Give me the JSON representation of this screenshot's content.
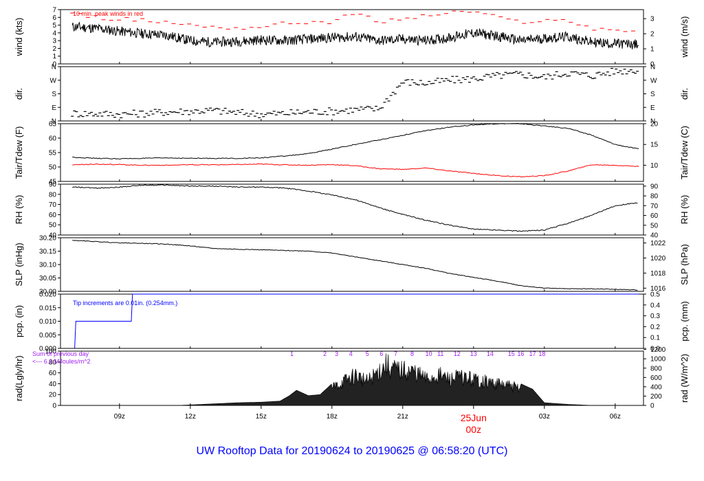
{
  "title": "UW Rooftop Data for 20190624  to  20190625 @ 06:58:20  (UTC)",
  "xaxis": {
    "ticks": [
      "09z",
      "12z",
      "15z",
      "18z",
      "21z",
      "03z",
      "06z"
    ],
    "day_label": "25Jun",
    "day_sub": "00z"
  },
  "colors": {
    "main": "#000000",
    "dew": "#ff0000",
    "precip": "#0000ff",
    "rad_note": "#a020f0",
    "title": "#0000ff"
  },
  "chart_data": [
    {
      "type": "line",
      "panel": "wind",
      "ylabel": "wind (kts)",
      "ylabel_right": "wind (m/s)",
      "ylim": [
        0,
        7
      ],
      "yticks": [
        "0",
        "1",
        "2",
        "3",
        "4",
        "5",
        "6",
        "7"
      ],
      "yticks_right": [
        "0",
        "1",
        "2",
        "3"
      ],
      "annotation": "10 min. peak winds in red",
      "x_hours": [
        7,
        8,
        9,
        10,
        11,
        12,
        13,
        14,
        15,
        16,
        17,
        18,
        19,
        20,
        21,
        22,
        23,
        24,
        25,
        26,
        27,
        28,
        29,
        30,
        31
      ],
      "series": [
        {
          "values": [
            4.8,
            4.6,
            4.2,
            3.9,
            3.7,
            3.0,
            2.8,
            2.9,
            3.1,
            3.0,
            3.2,
            3.4,
            3.5,
            3.0,
            3.2,
            3.0,
            3.4,
            4.0,
            3.6,
            3.0,
            3.3,
            3.5,
            2.8,
            2.6,
            2.5
          ]
        },
        {
          "values": [
            6.4,
            6.0,
            5.8,
            5.6,
            5.4,
            5.0,
            4.8,
            4.6,
            4.8,
            5.2,
            5.4,
            5.4,
            6.6,
            5.4,
            5.8,
            6.2,
            6.6,
            6.8,
            6.0,
            5.4,
            5.6,
            5.6,
            4.6,
            4.4,
            4.2
          ]
        }
      ]
    },
    {
      "type": "scatter",
      "panel": "dir",
      "ylabel": "dir.",
      "ylabel_right": "dir.",
      "ylim": [
        0,
        360
      ],
      "yticks": [
        "N",
        "E",
        "S",
        "W",
        "N"
      ],
      "x_hours": [
        7,
        8,
        9,
        10,
        11,
        12,
        13,
        14,
        15,
        16,
        17,
        18,
        19,
        20,
        21,
        22,
        23,
        24,
        25,
        26,
        27,
        28,
        29,
        30,
        31
      ],
      "values": [
        50,
        48,
        45,
        50,
        60,
        65,
        70,
        55,
        45,
        50,
        60,
        65,
        75,
        80,
        260,
        250,
        270,
        280,
        300,
        310,
        290,
        320,
        300,
        330,
        340
      ]
    },
    {
      "type": "line",
      "panel": "temp",
      "ylabel": "Tair/Tdew (F)",
      "ylabel_right": "Tair/Tdew (C)",
      "ylim": [
        43,
        68
      ],
      "yticks": [
        "45",
        "50",
        "55",
        "60",
        "65"
      ],
      "yticks_right": [
        "10",
        "15",
        "20"
      ],
      "x_hours": [
        7,
        8,
        9,
        10,
        11,
        12,
        13,
        14,
        15,
        16,
        17,
        18,
        19,
        20,
        21,
        22,
        23,
        24,
        25,
        26,
        27,
        28,
        29,
        30,
        31
      ],
      "series": [
        {
          "name": "Tair",
          "values": [
            53.5,
            53,
            52.8,
            53,
            53.2,
            53,
            53,
            53,
            53.2,
            54,
            55,
            57,
            59,
            61,
            63,
            65,
            66.5,
            67.5,
            68,
            68,
            67,
            66,
            63,
            59,
            57
          ]
        },
        {
          "name": "Tdew",
          "values": [
            50.2,
            50.5,
            50.3,
            50.0,
            50.0,
            50.2,
            50.2,
            50.3,
            50.5,
            50.2,
            50.0,
            50.3,
            49.8,
            48.5,
            48.2,
            48.8,
            47.5,
            46.5,
            45.5,
            45.0,
            45.5,
            47.5,
            50.2,
            50.0,
            49.5
          ]
        }
      ]
    },
    {
      "type": "line",
      "panel": "rh",
      "ylabel": "RH (%)",
      "ylabel_right": "RH (%)",
      "ylim": [
        40,
        92
      ],
      "yticks": [
        "40",
        "50",
        "60",
        "70",
        "80",
        "90"
      ],
      "x_hours": [
        7,
        8,
        9,
        10,
        11,
        12,
        13,
        14,
        15,
        16,
        17,
        18,
        19,
        20,
        21,
        22,
        23,
        24,
        25,
        26,
        27,
        28,
        29,
        30,
        31
      ],
      "values": [
        89,
        88,
        89,
        91,
        91,
        90,
        90,
        89,
        89,
        88,
        85,
        81,
        76,
        68,
        61,
        55,
        50,
        46,
        45,
        44,
        45,
        52,
        60,
        70,
        73
      ]
    },
    {
      "type": "line",
      "panel": "slp",
      "ylabel": "SLP (inHg)",
      "ylabel_right": "SLP (hPa)",
      "ylim": [
        29.99,
        30.2
      ],
      "yticks": [
        "30.00",
        "30.05",
        "30.10",
        "30.15",
        "30.20"
      ],
      "yticks_right": [
        "1016",
        "1018",
        "1020",
        "1022"
      ],
      "x_hours": [
        7,
        8,
        9,
        10,
        11,
        12,
        13,
        14,
        15,
        16,
        17,
        18,
        19,
        20,
        21,
        22,
        23,
        24,
        25,
        26,
        27,
        28,
        29,
        30,
        31
      ],
      "values": [
        30.19,
        30.185,
        30.18,
        30.178,
        30.175,
        30.168,
        30.158,
        30.155,
        30.153,
        30.15,
        30.148,
        30.14,
        30.125,
        30.11,
        30.095,
        30.08,
        30.06,
        30.045,
        30.03,
        30.012,
        30.003,
        30.0,
        30.0,
        29.998,
        29.995
      ]
    },
    {
      "type": "line",
      "panel": "pcp",
      "ylabel": "pcp. (in)",
      "ylabel_right": "pcp. (mm)",
      "ylim": [
        0,
        0.02
      ],
      "yticks": [
        "0.000",
        "0.005",
        "0.010",
        "0.015",
        "0.020"
      ],
      "yticks_right": [
        "0.0",
        "0.1",
        "0.2",
        "0.3",
        "0.4",
        "0.5"
      ],
      "annotation": "Tip increments are 0.01in. (0.254mm.)",
      "x_hours": [
        7.1,
        7.15,
        9.5,
        9.55,
        31
      ],
      "values": [
        0,
        0.01,
        0.01,
        0.02,
        0.02
      ]
    },
    {
      "type": "area",
      "panel": "rad",
      "ylabel": "rad(Lgly/hr)",
      "ylabel_right": "rad (W/m^2)",
      "ylim": [
        0,
        100
      ],
      "yticks": [
        "0",
        "20",
        "40",
        "60",
        "80",
        "100"
      ],
      "yticks_right": [
        "0",
        "200",
        "400",
        "600",
        "800",
        "1000",
        "1200"
      ],
      "annotation_line1": "Sum of previous day",
      "annotation_line2": "<--- 6.6 MJoules/m^2",
      "hour_labels": [
        "1",
        "2",
        "3",
        "4",
        "5",
        "6",
        "7",
        "8",
        "10",
        "11",
        "12",
        "13",
        "14",
        "15",
        "16",
        "17",
        "18"
      ],
      "x_hours": [
        11.5,
        12,
        13,
        14,
        15,
        15.8,
        16.2,
        16.5,
        17,
        17.5,
        18,
        18.5,
        19,
        19.5,
        20,
        20.3,
        20.5,
        21,
        21.5,
        22,
        22.5,
        23,
        23.5,
        24,
        24.5,
        25,
        25.5,
        26,
        26.5,
        27,
        28,
        29
      ],
      "values": [
        0,
        1,
        3,
        5,
        6,
        8,
        18,
        28,
        18,
        20,
        40,
        55,
        70,
        55,
        80,
        95,
        85,
        80,
        78,
        60,
        70,
        60,
        65,
        60,
        55,
        50,
        45,
        40,
        30,
        5,
        2,
        0
      ]
    }
  ]
}
